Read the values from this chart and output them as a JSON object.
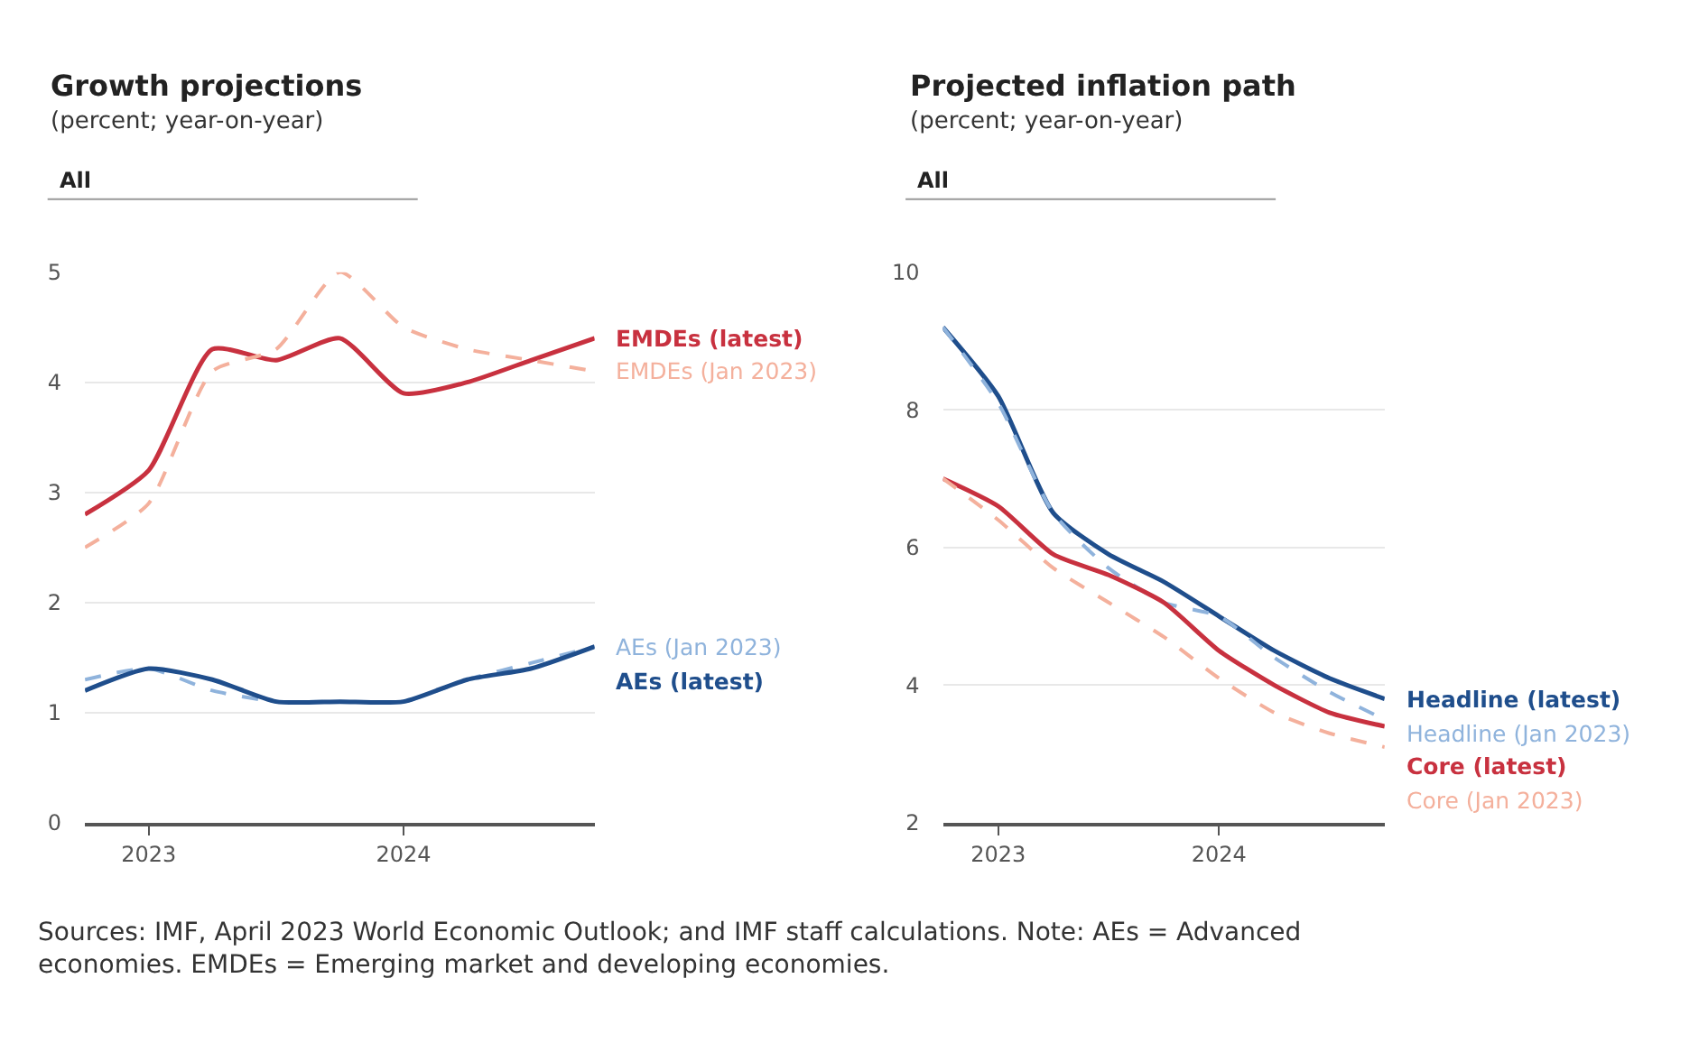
{
  "chart_data": [
    {
      "type": "line",
      "title": "Growth projections",
      "subtitle": "(percent; year-on-year)",
      "annotations": [
        "All",
        "Sources: IMF, April 2023 World Economic Outlook; and IMF staff calculations. Note: AEs = Advanced economies. EMDEs = Emerging market and developing economies."
      ],
      "x": [
        2022.75,
        2023,
        2023.25,
        2023.5,
        2023.75,
        2024,
        2024.25,
        2024.5,
        2024.75
      ],
      "xlim": [
        2022.75,
        2024.75
      ],
      "xticks": [
        2023,
        2024
      ],
      "ylim": [
        0,
        5
      ],
      "yticks": [
        0,
        1,
        2,
        3,
        4,
        5
      ],
      "grid": "y",
      "series": [
        {
          "name": "EMDEs (latest)",
          "color": "#c8313f",
          "line_style": "solid",
          "values": [
            2.8,
            3.2,
            4.3,
            4.2,
            4.4,
            3.9,
            4.0,
            4.2,
            4.4
          ]
        },
        {
          "name": "EMDEs (Jan 2023)",
          "color": "#f4b09c",
          "line_style": "dashed",
          "values": [
            2.5,
            2.9,
            4.1,
            4.3,
            5.0,
            4.5,
            4.3,
            4.2,
            4.1
          ]
        },
        {
          "name": "AEs (Jan 2023)",
          "color": "#8fb3dc",
          "line_style": "dashed",
          "values": [
            1.3,
            1.4,
            1.2,
            1.1,
            1.1,
            1.1,
            1.3,
            1.45,
            1.6
          ]
        },
        {
          "name": "AEs (latest)",
          "color": "#1f4e8c",
          "line_style": "solid",
          "values": [
            1.2,
            1.4,
            1.3,
            1.1,
            1.1,
            1.1,
            1.3,
            1.4,
            1.6
          ]
        }
      ]
    },
    {
      "type": "line",
      "title": "Projected inflation path",
      "subtitle": "(percent; year-on-year)",
      "annotations": [
        "All"
      ],
      "x": [
        2022.75,
        2023,
        2023.25,
        2023.5,
        2023.75,
        2024,
        2024.25,
        2024.5,
        2024.75
      ],
      "xlim": [
        2022.75,
        2024.75
      ],
      "xticks": [
        2023,
        2024
      ],
      "ylim": [
        2,
        10
      ],
      "yticks": [
        2,
        4,
        6,
        8,
        10
      ],
      "grid": "y",
      "series": [
        {
          "name": "Headline (latest)",
          "color": "#1f4e8c",
          "line_style": "solid",
          "values": [
            9.2,
            8.2,
            6.5,
            5.9,
            5.5,
            5.0,
            4.5,
            4.1,
            3.8
          ]
        },
        {
          "name": "Headline (Jan 2023)",
          "color": "#8fb3dc",
          "line_style": "dashed",
          "values": [
            9.2,
            8.1,
            6.5,
            5.7,
            5.2,
            5.0,
            4.4,
            3.9,
            3.5
          ]
        },
        {
          "name": "Core (latest)",
          "color": "#c8313f",
          "line_style": "solid",
          "values": [
            7.0,
            6.6,
            5.9,
            5.6,
            5.2,
            4.5,
            4.0,
            3.6,
            3.4
          ]
        },
        {
          "name": "Core (Jan 2023)",
          "color": "#f4b09c",
          "line_style": "dashed",
          "values": [
            7.0,
            6.4,
            5.7,
            5.2,
            4.7,
            4.1,
            3.6,
            3.3,
            3.1
          ]
        }
      ]
    }
  ]
}
